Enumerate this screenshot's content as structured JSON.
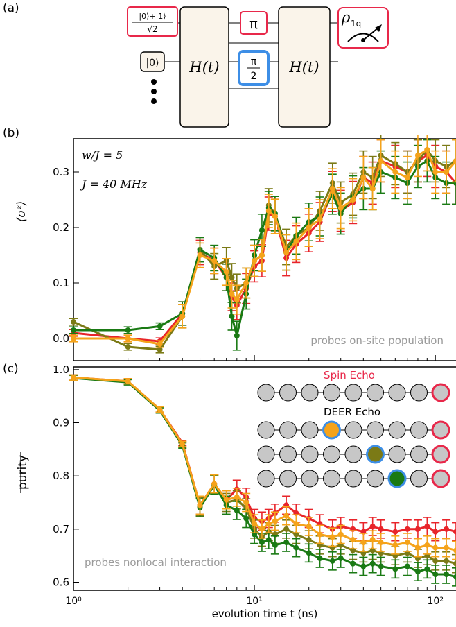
{
  "panels": {
    "a": "(a)",
    "b": "(b)",
    "c": "(c)"
  },
  "circuit": {
    "input_top": "|0⟩+|1⟩",
    "input_top_den": "√2",
    "input_mid": "|0⟩",
    "h_gate": "H(t)",
    "pi_gate": "π",
    "pi2_num": "π",
    "pi2_den": "2",
    "rho": "ρ",
    "rho_sub": "1q"
  },
  "colors": {
    "red": "#e8242a",
    "orange": "#f5a31a",
    "olive": "#7b7a16",
    "green": "#1a7a14",
    "crimson": "#e8284a",
    "blue": "#3d8ee6",
    "grey": "#c7c7c7"
  },
  "legend": {
    "spin_echo": "Spin Echo",
    "deer_echo": "DEER Echo"
  },
  "chart_data": [
    {
      "type": "line",
      "ylabel": "⟨σᶻ⟩",
      "ylim": [
        -0.04,
        0.36
      ],
      "yticks": [
        "0.0",
        "0.1",
        "0.2",
        "0.3"
      ],
      "annotations": [
        "w/J = 5",
        "J = 40 MHz",
        "probes on-site population"
      ],
      "x": [
        1,
        2,
        3,
        4,
        5,
        6,
        7,
        7.5,
        8,
        9,
        10,
        11,
        12,
        13,
        15,
        17,
        20,
        23,
        27,
        30,
        35,
        40,
        45,
        50,
        60,
        70,
        80,
        90,
        100,
        115,
        130
      ],
      "series": [
        {
          "name": "red",
          "values": [
            0.01,
            0.0,
            -0.005,
            0.045,
            0.155,
            0.14,
            0.11,
            0.075,
            0.06,
            0.09,
            0.13,
            0.14,
            0.225,
            0.22,
            0.145,
            0.17,
            0.19,
            0.21,
            0.265,
            0.23,
            0.245,
            0.29,
            0.28,
            0.32,
            0.31,
            0.3,
            0.32,
            0.33,
            0.31,
            0.3,
            0.28
          ]
        },
        {
          "name": "orange",
          "values": [
            0.0,
            0.0,
            -0.01,
            0.04,
            0.15,
            0.14,
            0.12,
            0.08,
            0.07,
            0.1,
            0.14,
            0.15,
            0.23,
            0.22,
            0.155,
            0.175,
            0.2,
            0.215,
            0.27,
            0.235,
            0.25,
            0.29,
            0.27,
            0.32,
            0.3,
            0.29,
            0.33,
            0.34,
            0.3,
            0.3,
            0.32
          ]
        },
        {
          "name": "olive",
          "values": [
            0.03,
            -0.015,
            -0.02,
            0.04,
            0.16,
            0.13,
            0.14,
            0.11,
            0.09,
            0.1,
            0.14,
            0.15,
            0.24,
            0.225,
            0.165,
            0.185,
            0.2,
            0.23,
            0.28,
            0.245,
            0.26,
            0.3,
            0.29,
            0.33,
            0.315,
            0.3,
            0.32,
            0.34,
            0.32,
            0.31,
            0.32
          ]
        },
        {
          "name": "green",
          "values": [
            0.015,
            0.015,
            0.022,
            0.045,
            0.16,
            0.145,
            0.11,
            0.04,
            0.005,
            0.08,
            0.15,
            0.195,
            0.235,
            0.225,
            0.155,
            0.185,
            0.21,
            0.22,
            0.26,
            0.225,
            0.255,
            0.27,
            0.27,
            0.3,
            0.29,
            0.28,
            0.31,
            0.32,
            0.29,
            0.28,
            0.28
          ]
        }
      ]
    },
    {
      "type": "line",
      "xlabel": "evolution time  t (ns)",
      "ylabel": "purity",
      "ylim": [
        0.585,
        1.005
      ],
      "yticks": [
        "0.6",
        "0.7",
        "0.8",
        "0.9",
        "1.0"
      ],
      "xscale": "log",
      "xlim": [
        1,
        130
      ],
      "xtick_labels": [
        "10⁰",
        "10¹",
        "10²"
      ],
      "annotations": [
        "probes nonlocal interaction"
      ],
      "x": [
        1,
        2,
        3,
        4,
        5,
        6,
        7,
        8,
        9,
        10,
        11,
        12,
        13,
        15,
        17,
        20,
        23,
        27,
        30,
        35,
        40,
        45,
        50,
        60,
        70,
        80,
        90,
        100,
        115,
        130
      ],
      "series": [
        {
          "name": "red",
          "values": [
            0.985,
            0.978,
            0.925,
            0.862,
            0.745,
            0.785,
            0.755,
            0.775,
            0.76,
            0.72,
            0.715,
            0.72,
            0.73,
            0.745,
            0.73,
            0.72,
            0.71,
            0.7,
            0.705,
            0.7,
            0.695,
            0.705,
            0.7,
            0.695,
            0.7,
            0.7,
            0.705,
            0.695,
            0.7,
            0.695
          ]
        },
        {
          "name": "orange",
          "values": [
            0.985,
            0.978,
            0.925,
            0.86,
            0.745,
            0.785,
            0.755,
            0.76,
            0.75,
            0.71,
            0.7,
            0.71,
            0.715,
            0.725,
            0.71,
            0.705,
            0.69,
            0.685,
            0.69,
            0.68,
            0.675,
            0.68,
            0.675,
            0.67,
            0.675,
            0.665,
            0.67,
            0.665,
            0.665,
            0.66
          ]
        },
        {
          "name": "olive",
          "values": [
            0.985,
            0.977,
            0.924,
            0.859,
            0.742,
            0.784,
            0.75,
            0.755,
            0.74,
            0.7,
            0.685,
            0.695,
            0.69,
            0.7,
            0.69,
            0.68,
            0.67,
            0.665,
            0.67,
            0.66,
            0.655,
            0.66,
            0.655,
            0.65,
            0.655,
            0.645,
            0.65,
            0.64,
            0.64,
            0.635
          ]
        },
        {
          "name": "green",
          "values": [
            0.984,
            0.976,
            0.923,
            0.857,
            0.74,
            0.783,
            0.745,
            0.735,
            0.72,
            0.69,
            0.675,
            0.68,
            0.67,
            0.675,
            0.665,
            0.655,
            0.645,
            0.64,
            0.645,
            0.635,
            0.63,
            0.635,
            0.63,
            0.625,
            0.63,
            0.62,
            0.625,
            0.615,
            0.615,
            0.61
          ]
        }
      ]
    }
  ]
}
